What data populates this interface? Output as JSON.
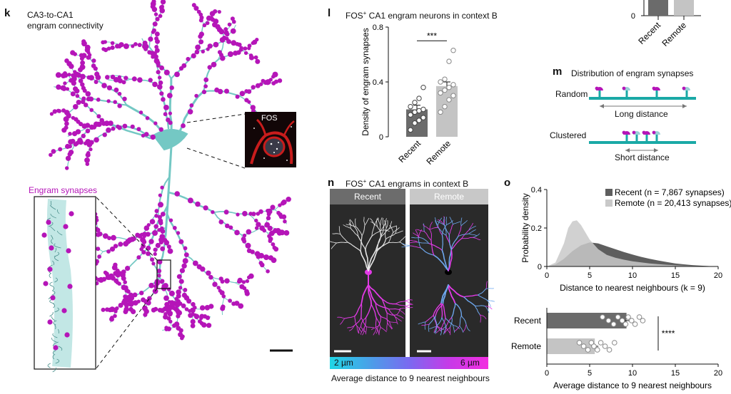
{
  "panel_k": {
    "label": "k",
    "title_line1": "CA3-to-CA1",
    "title_line2": "engram connectivity",
    "inset_title": "Engram synapses",
    "fos_label": "FOS"
  },
  "panel_l": {
    "label": "l",
    "title_prefix": "FOS",
    "title_sup": "+",
    "title_rest": " CA1 engram neurons in context B",
    "significance": "***",
    "chart_data": {
      "type": "bar",
      "categories": [
        "Recent",
        "Remote"
      ],
      "values": [
        0.2,
        0.37
      ],
      "ylabel": "Density of engram synapses",
      "ylim": [
        0,
        0.8
      ],
      "yticks": [
        "0",
        "0.4",
        "0.8"
      ],
      "points": [
        [
          0.05,
          0.1,
          0.12,
          0.14,
          0.16,
          0.18,
          0.19,
          0.2,
          0.22,
          0.25,
          0.28,
          0.36
        ],
        [
          0.18,
          0.22,
          0.27,
          0.3,
          0.32,
          0.34,
          0.36,
          0.38,
          0.4,
          0.42,
          0.55,
          0.63
        ]
      ],
      "colors": [
        "#6b6b6b",
        "#c4c4c4"
      ]
    }
  },
  "panel_top_right": {
    "categories": [
      "Recent",
      "Remote"
    ],
    "ytick": "0"
  },
  "panel_m": {
    "label": "m",
    "title": "Distribution of engram synapses",
    "random_label": "Random",
    "random_caption": "Long distance",
    "clustered_label": "Clustered",
    "clustered_caption": "Short distance"
  },
  "panel_n": {
    "label": "n",
    "title_prefix": "FOS",
    "title_sup": "+",
    "title_rest": " CA1 engrams in context B",
    "recent_header": "Recent",
    "remote_header": "Remote",
    "scale_min": "2 µm",
    "scale_max": "6 µm",
    "scale_caption": "Average distance to 9 nearest neighbours"
  },
  "panel_o": {
    "label": "o",
    "density_chart": {
      "type": "area",
      "xlabel": "Distance to nearest neighbours (k = 9)",
      "ylabel": "Probability density",
      "xlim": [
        0,
        20
      ],
      "ylim": [
        0,
        0.4
      ],
      "xticks": [
        "0",
        "5",
        "10",
        "15",
        "20"
      ],
      "yticks": [
        "0",
        "0.2",
        "0.4"
      ],
      "series": [
        {
          "name": "Recent",
          "legend": "Recent (n = 7,867 synapses)",
          "color": "#5e5e5e",
          "x": [
            0,
            1,
            2,
            3,
            4,
            5,
            6,
            7,
            8,
            9,
            10,
            11,
            12,
            13,
            14,
            15,
            16,
            17,
            18,
            19,
            20
          ],
          "y": [
            0,
            0.01,
            0.04,
            0.08,
            0.11,
            0.125,
            0.12,
            0.105,
            0.09,
            0.075,
            0.062,
            0.05,
            0.04,
            0.031,
            0.023,
            0.016,
            0.011,
            0.007,
            0.004,
            0.002,
            0.001
          ]
        },
        {
          "name": "Remote",
          "legend": "Remote (n = 20,413 synapses)",
          "color": "#c9c9c9",
          "x": [
            0,
            1,
            2,
            2.5,
            3,
            3.5,
            4,
            5,
            6,
            7,
            8,
            9,
            10,
            11,
            12,
            13,
            14,
            15,
            16,
            17,
            18,
            19,
            20
          ],
          "y": [
            0,
            0.02,
            0.12,
            0.2,
            0.235,
            0.24,
            0.215,
            0.14,
            0.09,
            0.06,
            0.045,
            0.035,
            0.027,
            0.021,
            0.016,
            0.012,
            0.009,
            0.006,
            0.004,
            0.003,
            0.002,
            0.001,
            0.0005
          ]
        }
      ]
    },
    "bar_chart": {
      "type": "bar",
      "orientation": "horizontal",
      "categories": [
        "Recent",
        "Remote"
      ],
      "values": [
        9.3,
        5.6
      ],
      "xlabel": "Average distance to 9 nearest neighbours",
      "xlim": [
        0,
        20
      ],
      "xticks": [
        "0",
        "5",
        "10",
        "15",
        "20"
      ],
      "significance": "****",
      "points": [
        [
          6.5,
          7.2,
          7.8,
          8.3,
          8.8,
          9.2,
          9.5,
          9.9,
          10.3,
          10.8,
          11.2
        ],
        [
          3.8,
          4.3,
          4.8,
          5.2,
          5.5,
          5.9,
          6.3,
          6.8,
          7.3,
          7.9
        ]
      ],
      "colors": [
        "#6b6b6b",
        "#c4c4c4"
      ]
    }
  },
  "colors": {
    "dendrite": "#74c8c4",
    "synapse": "#b515b8",
    "dark_panel": "#2a2a2a",
    "header_dark": "#6c6c6c",
    "header_light": "#c8c8c8",
    "teal_bar": "#1aa9a6"
  }
}
